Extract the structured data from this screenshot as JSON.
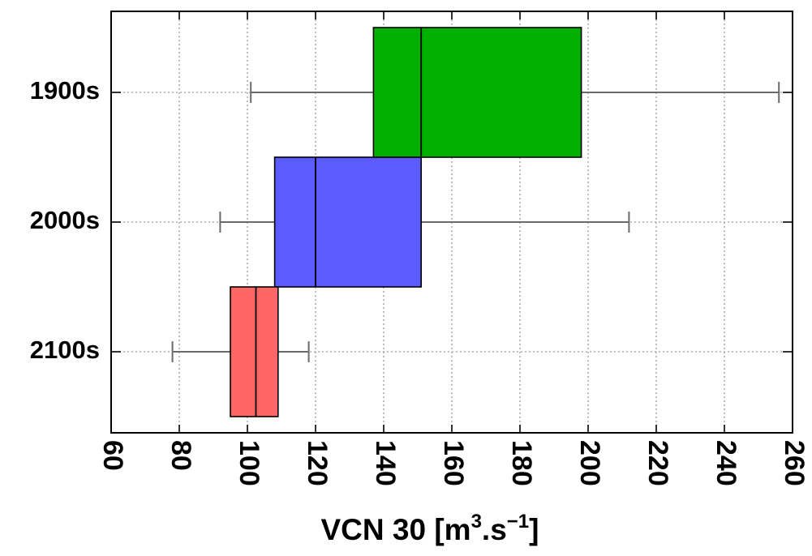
{
  "chart_data": {
    "type": "boxplot",
    "orientation": "horizontal",
    "xlabel": "VCN 30 [m3.s-1]",
    "xlabel_parts": {
      "base": "VCN 30 [m",
      "sup1": "3",
      "mid": ".s",
      "sup2": "−1",
      "end": "]"
    },
    "xlim": [
      60,
      260
    ],
    "x_ticks": [
      60,
      80,
      100,
      120,
      140,
      160,
      180,
      200,
      220,
      240,
      260
    ],
    "x_tick_labels": [
      "60",
      "80",
      "100",
      "120",
      "140",
      "160",
      "180",
      "200",
      "220",
      "240",
      "260"
    ],
    "categories": [
      "1900s",
      "2000s",
      "2100s"
    ],
    "grid": true,
    "series": [
      {
        "category": "1900s",
        "whisker_low": 101,
        "q1": 137,
        "median": 151,
        "q3": 198,
        "whisker_high": 256,
        "color": "#00b000"
      },
      {
        "category": "2000s",
        "whisker_low": 92,
        "q1": 108,
        "median": 120,
        "q3": 151,
        "whisker_high": 212,
        "color": "#5b5bff"
      },
      {
        "category": "2100s",
        "whisker_low": 78,
        "q1": 95,
        "median": 102.5,
        "q3": 109,
        "whisker_high": 118,
        "color": "#ff6666"
      }
    ]
  }
}
